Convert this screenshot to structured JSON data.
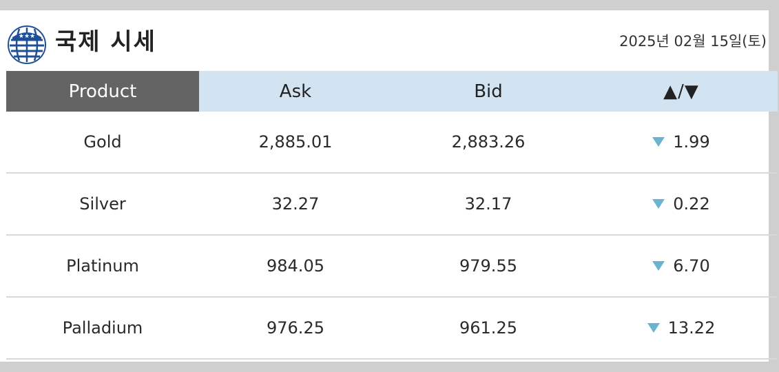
{
  "header": {
    "title": "국제 시세",
    "date": "2025년 02월 15일(토)"
  },
  "table": {
    "columns": [
      "Product",
      "Ask",
      "Bid",
      "▲/▼"
    ],
    "rows": [
      {
        "product": "Gold",
        "ask": "2,885.01",
        "bid": "2,883.26",
        "change": "1.99",
        "direction": "down"
      },
      {
        "product": "Silver",
        "ask": "32.27",
        "bid": "32.17",
        "change": "0.22",
        "direction": "down"
      },
      {
        "product": "Platinum",
        "ask": "984.05",
        "bid": "979.55",
        "change": "6.70",
        "direction": "down"
      },
      {
        "product": "Palladium",
        "ask": "976.25",
        "bid": "961.25",
        "change": "13.22",
        "direction": "down"
      }
    ]
  },
  "colors": {
    "header_product_bg": "#646464",
    "header_bg": "#d2e3f1",
    "down_arrow": "#6ab4d0"
  },
  "icons": {
    "logo": "samsung-globe-logo-icon",
    "down": "down-triangle-icon"
  }
}
